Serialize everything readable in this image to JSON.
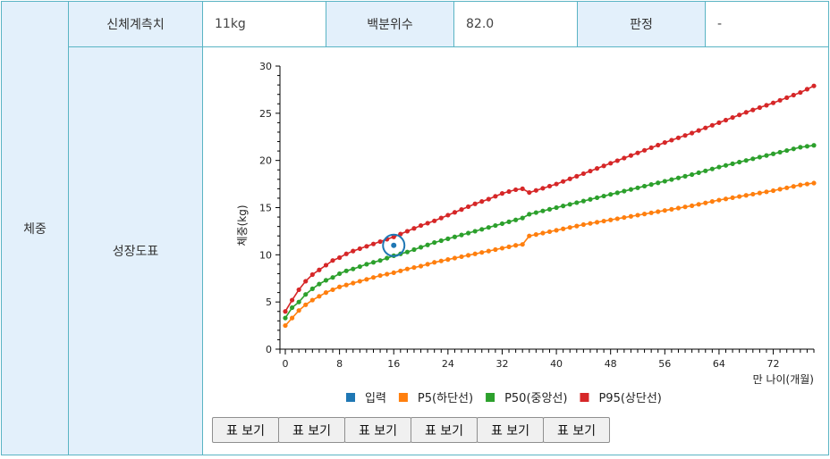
{
  "row_label": "체중",
  "measure": {
    "label": "신체계측치",
    "value": "11kg"
  },
  "percentile": {
    "label": "백분위수",
    "value": "82.0"
  },
  "verdict": {
    "label": "판정",
    "value": "-"
  },
  "growth_chart_label": "성장도표",
  "table_buttons": [
    "표 보기",
    "표 보기",
    "표 보기",
    "표 보기",
    "표 보기",
    "표 보기"
  ],
  "colors": {
    "input": "#1f77b4",
    "p5": "#ff7f0e",
    "p50": "#2ca02c",
    "p95": "#d62728",
    "border": "#5ab4c4",
    "header_bg": "#e3f0fb"
  },
  "chart_data": {
    "type": "line",
    "xlabel": "만 나이(개월)",
    "ylabel": "체중(kg)",
    "xlim": [
      0,
      78
    ],
    "ylim": [
      0,
      30
    ],
    "x_ticks": [
      0,
      8,
      16,
      24,
      32,
      40,
      48,
      56,
      64,
      72
    ],
    "y_ticks": [
      0,
      5,
      10,
      15,
      20,
      25,
      30
    ],
    "legend_position": "bottom",
    "input_point": {
      "name": "입력",
      "x": 16,
      "y": 11
    },
    "series": [
      {
        "name": "P5(하단선)",
        "color": "#ff7f0e",
        "points": [
          [
            0,
            2.5
          ],
          [
            1,
            3.3
          ],
          [
            2,
            4.1
          ],
          [
            3,
            4.7
          ],
          [
            4,
            5.2
          ],
          [
            5,
            5.6
          ],
          [
            6,
            6.0
          ],
          [
            7,
            6.3
          ],
          [
            8,
            6.6
          ],
          [
            9,
            6.8
          ],
          [
            10,
            7.0
          ],
          [
            12,
            7.4
          ],
          [
            14,
            7.8
          ],
          [
            16,
            8.1
          ],
          [
            18,
            8.5
          ],
          [
            20,
            8.8
          ],
          [
            22,
            9.2
          ],
          [
            24,
            9.5
          ],
          [
            26,
            9.8
          ],
          [
            28,
            10.1
          ],
          [
            30,
            10.4
          ],
          [
            32,
            10.7
          ],
          [
            34,
            11.0
          ],
          [
            35,
            11.1
          ],
          [
            36,
            12.0
          ],
          [
            40,
            12.6
          ],
          [
            44,
            13.2
          ],
          [
            48,
            13.7
          ],
          [
            52,
            14.2
          ],
          [
            56,
            14.7
          ],
          [
            60,
            15.2
          ],
          [
            64,
            15.8
          ],
          [
            68,
            16.3
          ],
          [
            72,
            16.8
          ],
          [
            76,
            17.4
          ],
          [
            78,
            17.6
          ]
        ]
      },
      {
        "name": "P50(중앙선)",
        "color": "#2ca02c",
        "points": [
          [
            0,
            3.3
          ],
          [
            1,
            4.4
          ],
          [
            2,
            5.0
          ],
          [
            3,
            5.8
          ],
          [
            4,
            6.4
          ],
          [
            5,
            6.9
          ],
          [
            6,
            7.3
          ],
          [
            7,
            7.6
          ],
          [
            8,
            8.0
          ],
          [
            9,
            8.3
          ],
          [
            10,
            8.5
          ],
          [
            12,
            9.0
          ],
          [
            14,
            9.4
          ],
          [
            16,
            9.9
          ],
          [
            18,
            10.3
          ],
          [
            20,
            10.8
          ],
          [
            22,
            11.3
          ],
          [
            24,
            11.7
          ],
          [
            26,
            12.1
          ],
          [
            28,
            12.5
          ],
          [
            30,
            12.9
          ],
          [
            32,
            13.3
          ],
          [
            34,
            13.7
          ],
          [
            35,
            13.9
          ],
          [
            36,
            14.3
          ],
          [
            40,
            15.0
          ],
          [
            44,
            15.7
          ],
          [
            48,
            16.4
          ],
          [
            52,
            17.1
          ],
          [
            56,
            17.8
          ],
          [
            60,
            18.5
          ],
          [
            64,
            19.3
          ],
          [
            68,
            20.0
          ],
          [
            72,
            20.7
          ],
          [
            76,
            21.4
          ],
          [
            78,
            21.6
          ]
        ]
      },
      {
        "name": "P95(상단선)",
        "color": "#d62728",
        "points": [
          [
            0,
            4.0
          ],
          [
            1,
            5.2
          ],
          [
            2,
            6.3
          ],
          [
            3,
            7.2
          ],
          [
            4,
            7.9
          ],
          [
            5,
            8.4
          ],
          [
            6,
            8.9
          ],
          [
            7,
            9.4
          ],
          [
            8,
            9.7
          ],
          [
            9,
            10.1
          ],
          [
            10,
            10.4
          ],
          [
            12,
            10.9
          ],
          [
            14,
            11.4
          ],
          [
            16,
            11.9
          ],
          [
            18,
            12.5
          ],
          [
            20,
            13.1
          ],
          [
            22,
            13.6
          ],
          [
            24,
            14.2
          ],
          [
            26,
            14.8
          ],
          [
            28,
            15.4
          ],
          [
            30,
            15.9
          ],
          [
            32,
            16.5
          ],
          [
            34,
            16.9
          ],
          [
            35,
            17.0
          ],
          [
            36,
            16.6
          ],
          [
            40,
            17.5
          ],
          [
            44,
            18.6
          ],
          [
            48,
            19.7
          ],
          [
            52,
            20.8
          ],
          [
            56,
            21.9
          ],
          [
            60,
            22.9
          ],
          [
            64,
            24.0
          ],
          [
            68,
            25.1
          ],
          [
            72,
            26.1
          ],
          [
            76,
            27.2
          ],
          [
            78,
            27.9
          ]
        ]
      }
    ]
  }
}
